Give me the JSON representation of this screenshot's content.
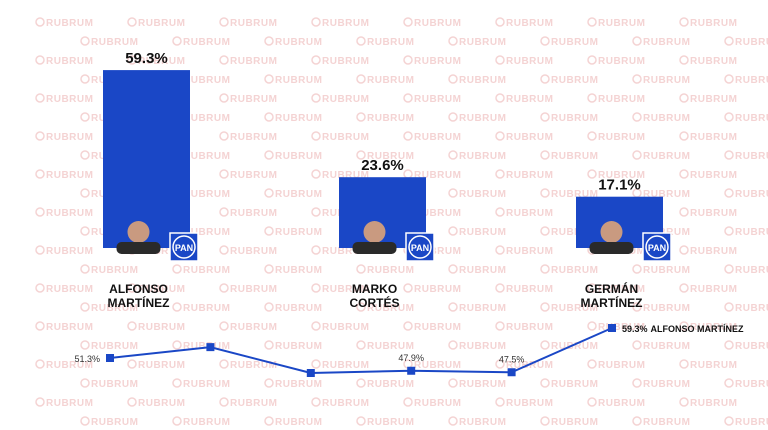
{
  "watermark": "RUBRUM",
  "logo_text": "PAN",
  "chart_data": [
    {
      "type": "bar",
      "categories": [
        "ALFONSO MARTÍNEZ",
        "MARKO CORTÉS",
        "GERMÁN MARTÍNEZ"
      ],
      "values": [
        59.3,
        23.6,
        17.1
      ],
      "value_labels": [
        "59.3%",
        "23.6%",
        "17.1%"
      ],
      "color": "#1a47c6"
    },
    {
      "type": "line",
      "categories": [
        null,
        null,
        null,
        null,
        null,
        null
      ],
      "series": [
        {
          "name": "ALFONSO MARTÍNEZ",
          "color": "#1a47c6",
          "values": [
            51.3,
            54.2,
            47.3,
            47.9,
            47.5,
            59.3
          ],
          "value_labels": [
            "51.3%",
            null,
            null,
            "47.9%",
            "47.5%",
            "59.3%"
          ]
        }
      ]
    }
  ]
}
